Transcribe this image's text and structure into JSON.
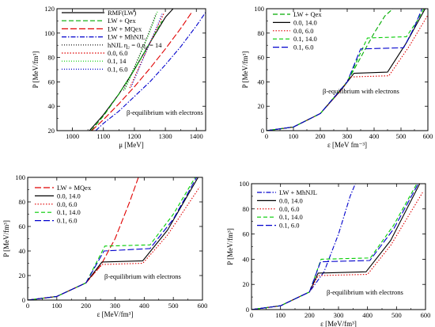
{
  "chart_data": [
    {
      "type": "line",
      "xlabel": "μ [MeV]",
      "ylabel": "P [MeV/fm³]",
      "xlim": [
        950,
        1430
      ],
      "ylim": [
        20,
        120
      ],
      "xticks": [
        1000,
        1100,
        1200,
        1300,
        1400
      ],
      "yticks": [
        20,
        40,
        60,
        80,
        100,
        120
      ],
      "annotation": "β-equilibrium with electrons",
      "legend_position": "top-left",
      "series": [
        {
          "name": "RMF(LW)",
          "color": "#000000",
          "dash": "solid",
          "x": [
            1055,
            1100,
            1150,
            1200,
            1250,
            1300,
            1325
          ],
          "y": [
            20,
            33,
            50,
            70,
            92,
            113,
            120
          ]
        },
        {
          "name": "LW + Qex",
          "color": "#00aa00",
          "dash": "6,3",
          "x": [
            1060,
            1100,
            1150,
            1200,
            1250,
            1290
          ],
          "y": [
            20,
            32,
            50,
            70,
            92,
            110
          ]
        },
        {
          "name": "LW + MQex",
          "color": "#e00000",
          "dash": "8,3",
          "x": [
            1062,
            1100,
            1150,
            1200,
            1250,
            1300,
            1350,
            1385
          ],
          "y": [
            20,
            29,
            42,
            56,
            71,
            87,
            104,
            117
          ]
        },
        {
          "name": "LW + MhNJL",
          "color": "#0000cc",
          "dash": "6,2,1.5,2",
          "x": [
            1075,
            1100,
            1150,
            1200,
            1250,
            1300,
            1350,
            1400,
            1430
          ],
          "y": [
            20,
            26,
            36,
            48,
            60,
            74,
            89,
            106,
            117
          ]
        },
        {
          "name": "hNJL η₂ = 0,η₄ = 14",
          "color": "#000000",
          "dash": "1,2",
          "x": [
            1165,
            1200,
            1240,
            1270
          ],
          "y": [
            53,
            72,
            96,
            116
          ]
        },
        {
          "name": "0.0,  6.0",
          "color": "#e00000",
          "dash": "1.5,2",
          "x": [
            1185,
            1220,
            1260,
            1295
          ],
          "y": [
            55,
            75,
            97,
            116
          ]
        },
        {
          "name": "0.1, 14",
          "color": "#00cc00",
          "dash": "1,2",
          "x": [
            1170,
            1205,
            1245,
            1275
          ],
          "y": [
            54,
            74,
            98,
            118
          ]
        },
        {
          "name": "0.1, 6.0",
          "color": "#0000cc",
          "dash": "1,2",
          "x": [
            1190,
            1225,
            1262,
            1290
          ],
          "y": [
            56,
            77,
            99,
            116
          ]
        }
      ]
    },
    {
      "type": "line",
      "xlabel": "ε [MeV fm⁻³]",
      "ylabel": "P [MeV/fm³]",
      "xlim": [
        0,
        600
      ],
      "ylim": [
        0,
        100
      ],
      "xticks": [
        0,
        100,
        200,
        300,
        400,
        500,
        600
      ],
      "yticks": [
        0,
        20,
        40,
        60,
        80,
        100
      ],
      "annotation": "β-equilibrium with electrons",
      "legend_position": "top-left",
      "series": [
        {
          "name": "LW + Qex",
          "color": "#00aa00",
          "dash": "6,3",
          "x": [
            0,
            100,
            200,
            300,
            350,
            400,
            440,
            470
          ],
          "y": [
            0,
            3,
            14,
            40,
            60,
            80,
            94,
            100
          ]
        },
        {
          "name": "0.0, 14.0",
          "color": "#000000",
          "dash": "solid",
          "x": [
            0,
            100,
            200,
            280,
            325,
            450,
            520,
            590
          ],
          "y": [
            0,
            3,
            14,
            34,
            47,
            48,
            72,
            100
          ]
        },
        {
          "name": "0.0,  6.0",
          "color": "#e00000",
          "dash": "1.5,2",
          "x": [
            0,
            100,
            200,
            280,
            310,
            455,
            530,
            598
          ],
          "y": [
            0,
            3,
            14,
            34,
            44,
            45,
            69,
            94
          ]
        },
        {
          "name": "0.1, 14.0",
          "color": "#00cc00",
          "dash": "5,3",
          "x": [
            0,
            100,
            200,
            300,
            375,
            520,
            560,
            585
          ],
          "y": [
            0,
            3,
            14,
            40,
            76,
            77,
            90,
            100
          ]
        },
        {
          "name": "0.1,  6.0",
          "color": "#0000cc",
          "dash": "8,3",
          "x": [
            0,
            100,
            200,
            300,
            350,
            510,
            550,
            578
          ],
          "y": [
            0,
            3,
            14,
            40,
            67,
            68,
            85,
            100
          ]
        }
      ]
    },
    {
      "type": "line",
      "xlabel": "ε [MeV/fm³]",
      "ylabel": "P [MeV/fm³]",
      "xlim": [
        0,
        600
      ],
      "ylim": [
        0,
        100
      ],
      "xticks": [
        0,
        100,
        200,
        300,
        400,
        500,
        600
      ],
      "yticks": [
        0,
        20,
        40,
        60,
        80,
        100
      ],
      "annotation": "β-equilibrium with electrons",
      "legend_position": "top-left",
      "series": [
        {
          "name": "LW + MQex",
          "color": "#e00000",
          "dash": "8,3",
          "x": [
            0,
            100,
            200,
            250,
            300,
            350,
            380
          ],
          "y": [
            0,
            3,
            14,
            28,
            50,
            80,
            100
          ]
        },
        {
          "name": "0.0, 14.0",
          "color": "#000000",
          "dash": "solid",
          "x": [
            0,
            100,
            200,
            255,
            395,
            480,
            585
          ],
          "y": [
            0,
            3,
            14,
            31,
            32,
            57,
            100
          ]
        },
        {
          "name": "0.0,  6.0",
          "color": "#e00000",
          "dash": "1.5,2",
          "x": [
            0,
            100,
            200,
            255,
            395,
            480,
            590
          ],
          "y": [
            0,
            3,
            14,
            29,
            30,
            53,
            92
          ]
        },
        {
          "name": "0.1, 14.0",
          "color": "#00cc00",
          "dash": "5,3",
          "x": [
            0,
            100,
            200,
            265,
            420,
            500,
            575
          ],
          "y": [
            0,
            3,
            14,
            44,
            45,
            70,
            100
          ]
        },
        {
          "name": "0.1,  6.0",
          "color": "#0000cc",
          "dash": "8,3",
          "x": [
            0,
            100,
            200,
            262,
            420,
            500,
            580
          ],
          "y": [
            0,
            3,
            14,
            40,
            42,
            66,
            100
          ]
        }
      ]
    },
    {
      "type": "line",
      "xlabel": "ε [MeV/fm³]",
      "ylabel": "P [MeV/fm³]",
      "xlim": [
        0,
        600
      ],
      "ylim": [
        0,
        100
      ],
      "xticks": [
        0,
        100,
        200,
        300,
        400,
        500,
        600
      ],
      "yticks": [
        0,
        20,
        40,
        60,
        80,
        100
      ],
      "annotation": "β-equilibrium with electrons",
      "legend_position": "top-left",
      "series": [
        {
          "name": "LW + MhNJL",
          "color": "#0000cc",
          "dash": "6,2,1.5,2",
          "x": [
            0,
            100,
            200,
            250,
            300,
            340,
            358
          ],
          "y": [
            0,
            3,
            14,
            30,
            60,
            90,
            100
          ]
        },
        {
          "name": "0.0, 14.0",
          "color": "#000000",
          "dash": "solid",
          "x": [
            0,
            100,
            200,
            230,
            395,
            480,
            580
          ],
          "y": [
            0,
            3,
            14,
            29,
            30,
            55,
            100
          ]
        },
        {
          "name": "0.0,  6.0",
          "color": "#e00000",
          "dash": "1.5,2",
          "x": [
            0,
            100,
            200,
            230,
            400,
            480,
            590
          ],
          "y": [
            0,
            3,
            14,
            27,
            28,
            51,
            93
          ]
        },
        {
          "name": "0.1, 14.0",
          "color": "#00cc00",
          "dash": "5,3",
          "x": [
            0,
            100,
            200,
            240,
            410,
            490,
            570
          ],
          "y": [
            0,
            3,
            14,
            40,
            41,
            67,
            100
          ]
        },
        {
          "name": "0.1,  6.0",
          "color": "#0000cc",
          "dash": "8,3",
          "x": [
            0,
            100,
            200,
            238,
            408,
            490,
            575
          ],
          "y": [
            0,
            3,
            14,
            38,
            39,
            64,
            100
          ]
        }
      ]
    }
  ]
}
